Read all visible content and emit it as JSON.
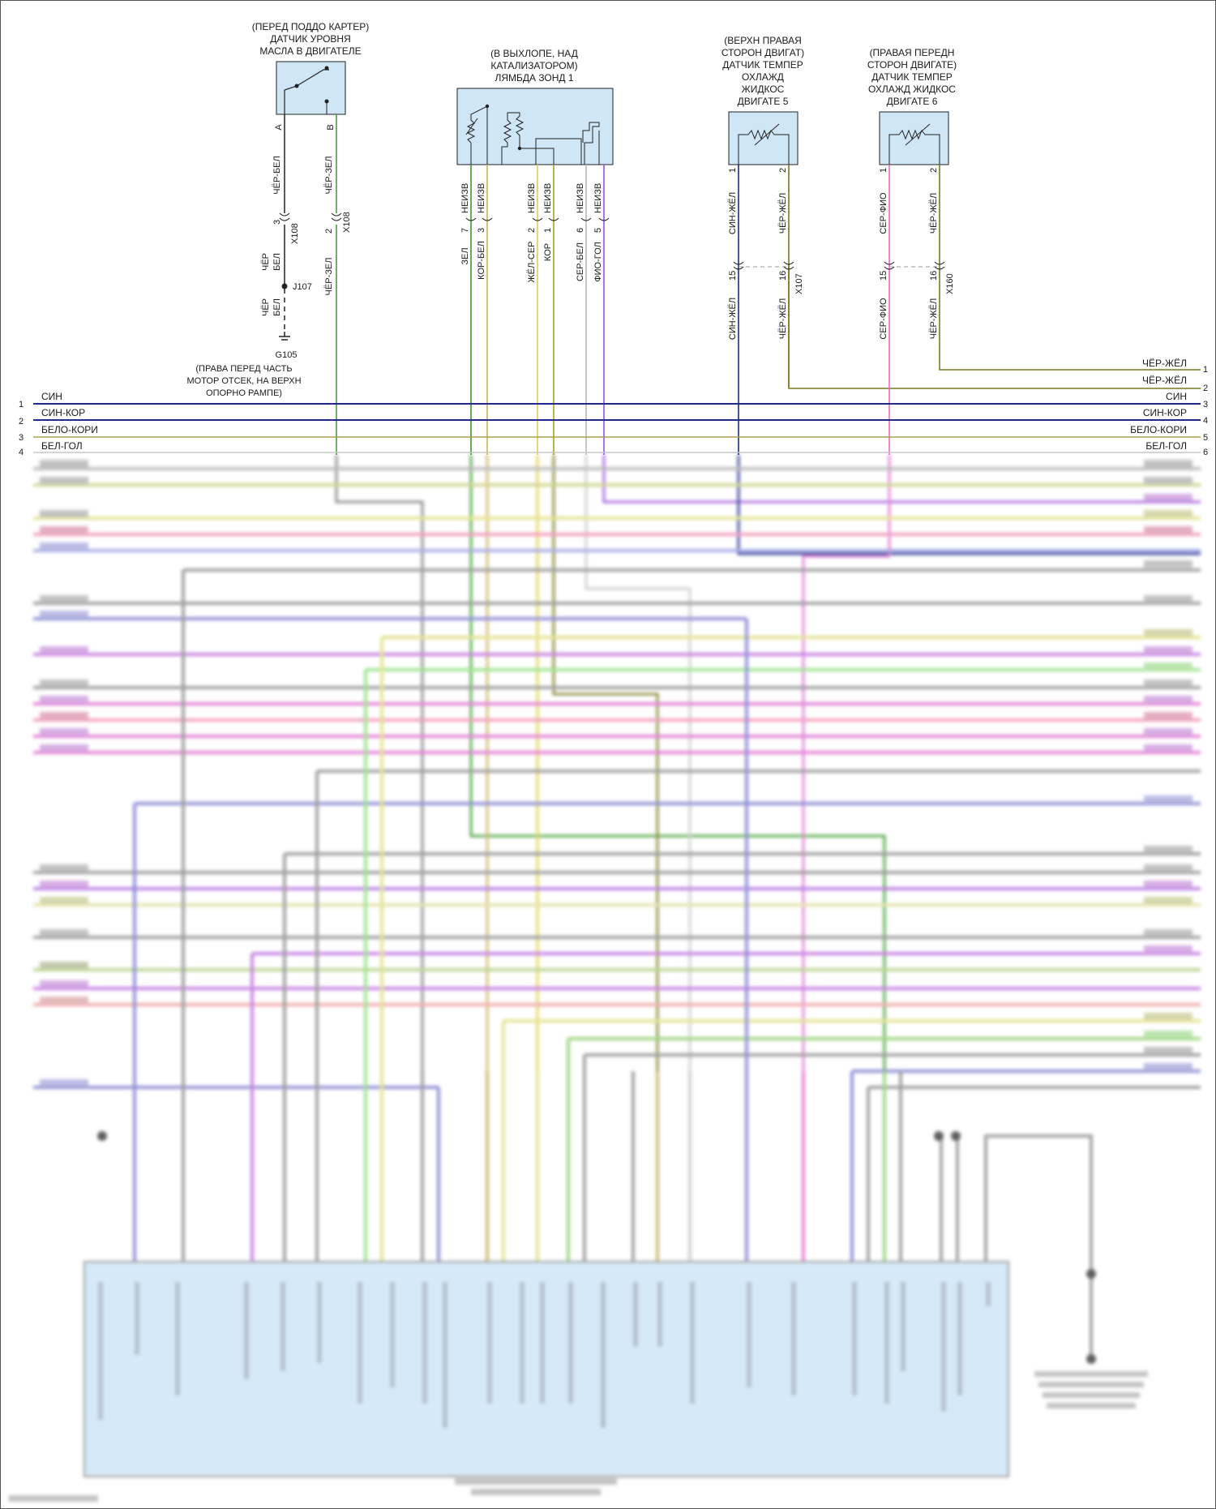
{
  "components": {
    "oil_level_sensor": {
      "caption_lines": [
        "(ПЕРЕД ПОДДО КАРТЕР)",
        "ДАТЧИК УРОВНЯ",
        "МАСЛА В ДВИГАТЕЛЕ"
      ],
      "pins": [
        "A",
        "B"
      ]
    },
    "lambda_sensor": {
      "caption_lines": [
        "(В ВЫХЛОПЕ, НАД",
        "КАТАЛИЗАТОРОМ)",
        "ЛЯМБДА ЗОНД 1"
      ]
    },
    "coolant_sensor_5": {
      "caption_lines": [
        "(ВЕРХН ПРАВАЯ",
        "СТОРОН ДВИГАТ)",
        "ДАТЧИК ТЕМПЕР",
        "ОХЛАЖД",
        "ЖИДКОС",
        "ДВИГАТЕ 5"
      ],
      "pins": [
        "1",
        "2"
      ]
    },
    "coolant_sensor_6": {
      "caption_lines": [
        "(ПРАВАЯ ПЕРЕДН",
        "СТОРОН ДВИГАТЕ)",
        "ДАТЧИК ТЕМПЕР",
        "ОХЛАЖД ЖИДКОС",
        "ДВИГАТЕ 6"
      ],
      "pins": [
        "1",
        "2"
      ]
    }
  },
  "wires": {
    "oil_a": "ЧЁР-БЕЛ",
    "oil_b": "ЧЁР-ЗЕЛ",
    "oil_b_lower": "ЧЁР-ЗЕЛ",
    "oil_a_pin": "3",
    "oil_b_pin": "2",
    "x108": "X108",
    "x108b": "X108",
    "cher": "ЧЁР",
    "bel": "БЕЛ",
    "cher2": "ЧЁР",
    "bel2": "БЕЛ",
    "j107": "J107",
    "g105": "G105",
    "g105_lines": [
      "(ПРАВА ПЕРЕД ЧАСТЬ",
      "МОТОР ОТСЕК, НА ВЕРХН",
      "ОПОРНО РАМПЕ)"
    ],
    "lambda": [
      {
        "label": "ЗЕЛ",
        "pin": "7",
        "tag": "НЕИЗВ"
      },
      {
        "label": "КОР-БЕЛ",
        "pin": "3",
        "tag": "НЕИЗВ"
      },
      {
        "label": "ЖЁЛ-СЕР",
        "pin": "2",
        "tag": "НЕИЗВ"
      },
      {
        "label": "КОР",
        "pin": "1",
        "tag": "НЕИЗВ"
      },
      {
        "label": "СЕР-БЕЛ",
        "pin": "6",
        "tag": "НЕИЗВ"
      },
      {
        "label": "ФИО-ГОЛ",
        "pin": "5",
        "tag": "НЕИЗВ"
      }
    ],
    "cts5_upper": [
      "СИН-ЖЁЛ",
      "ЧЁР-ЖЁЛ"
    ],
    "cts5_lower": [
      "СИН-ЖЁЛ",
      "ЧЁР-ЖЁЛ"
    ],
    "cts5_pins": [
      "15",
      "16"
    ],
    "x107": "X107",
    "cts6_upper": [
      "СЕР-ФИО",
      "ЧЁР-ЖЁЛ"
    ],
    "cts6_lower": [
      "СЕР-ФИО",
      "ЧЁР-ЖЁЛ"
    ],
    "cts6_pins": [
      "15",
      "16"
    ],
    "x160": "X160"
  },
  "bus": {
    "right_labels": [
      "ЧЁР-ЖЁЛ",
      "ЧЁР-ЖЁЛ",
      "СИН",
      "СИН-КОР",
      "БЕЛО-КОРИ",
      "БЕЛ-ГОЛ"
    ],
    "right_numbers": [
      "1",
      "2",
      "3",
      "4",
      "5",
      "6"
    ],
    "left_labels": [
      "СИН",
      "СИН-КОР",
      "БЕЛО-КОРИ",
      "БЕЛ-ГОЛ"
    ],
    "left_numbers": [
      "1",
      "2",
      "3",
      "4"
    ]
  },
  "colors": {
    "blue": "#1f2a8a",
    "olive": "#7a7a20",
    "green": "#3a9a2a",
    "yellow": "#e0d040",
    "tan": "#c8b060",
    "pink": "#e070d0",
    "violet": "#9a50d8",
    "grey": "#a0a0a0",
    "module_fill": "#cfe6f7"
  }
}
